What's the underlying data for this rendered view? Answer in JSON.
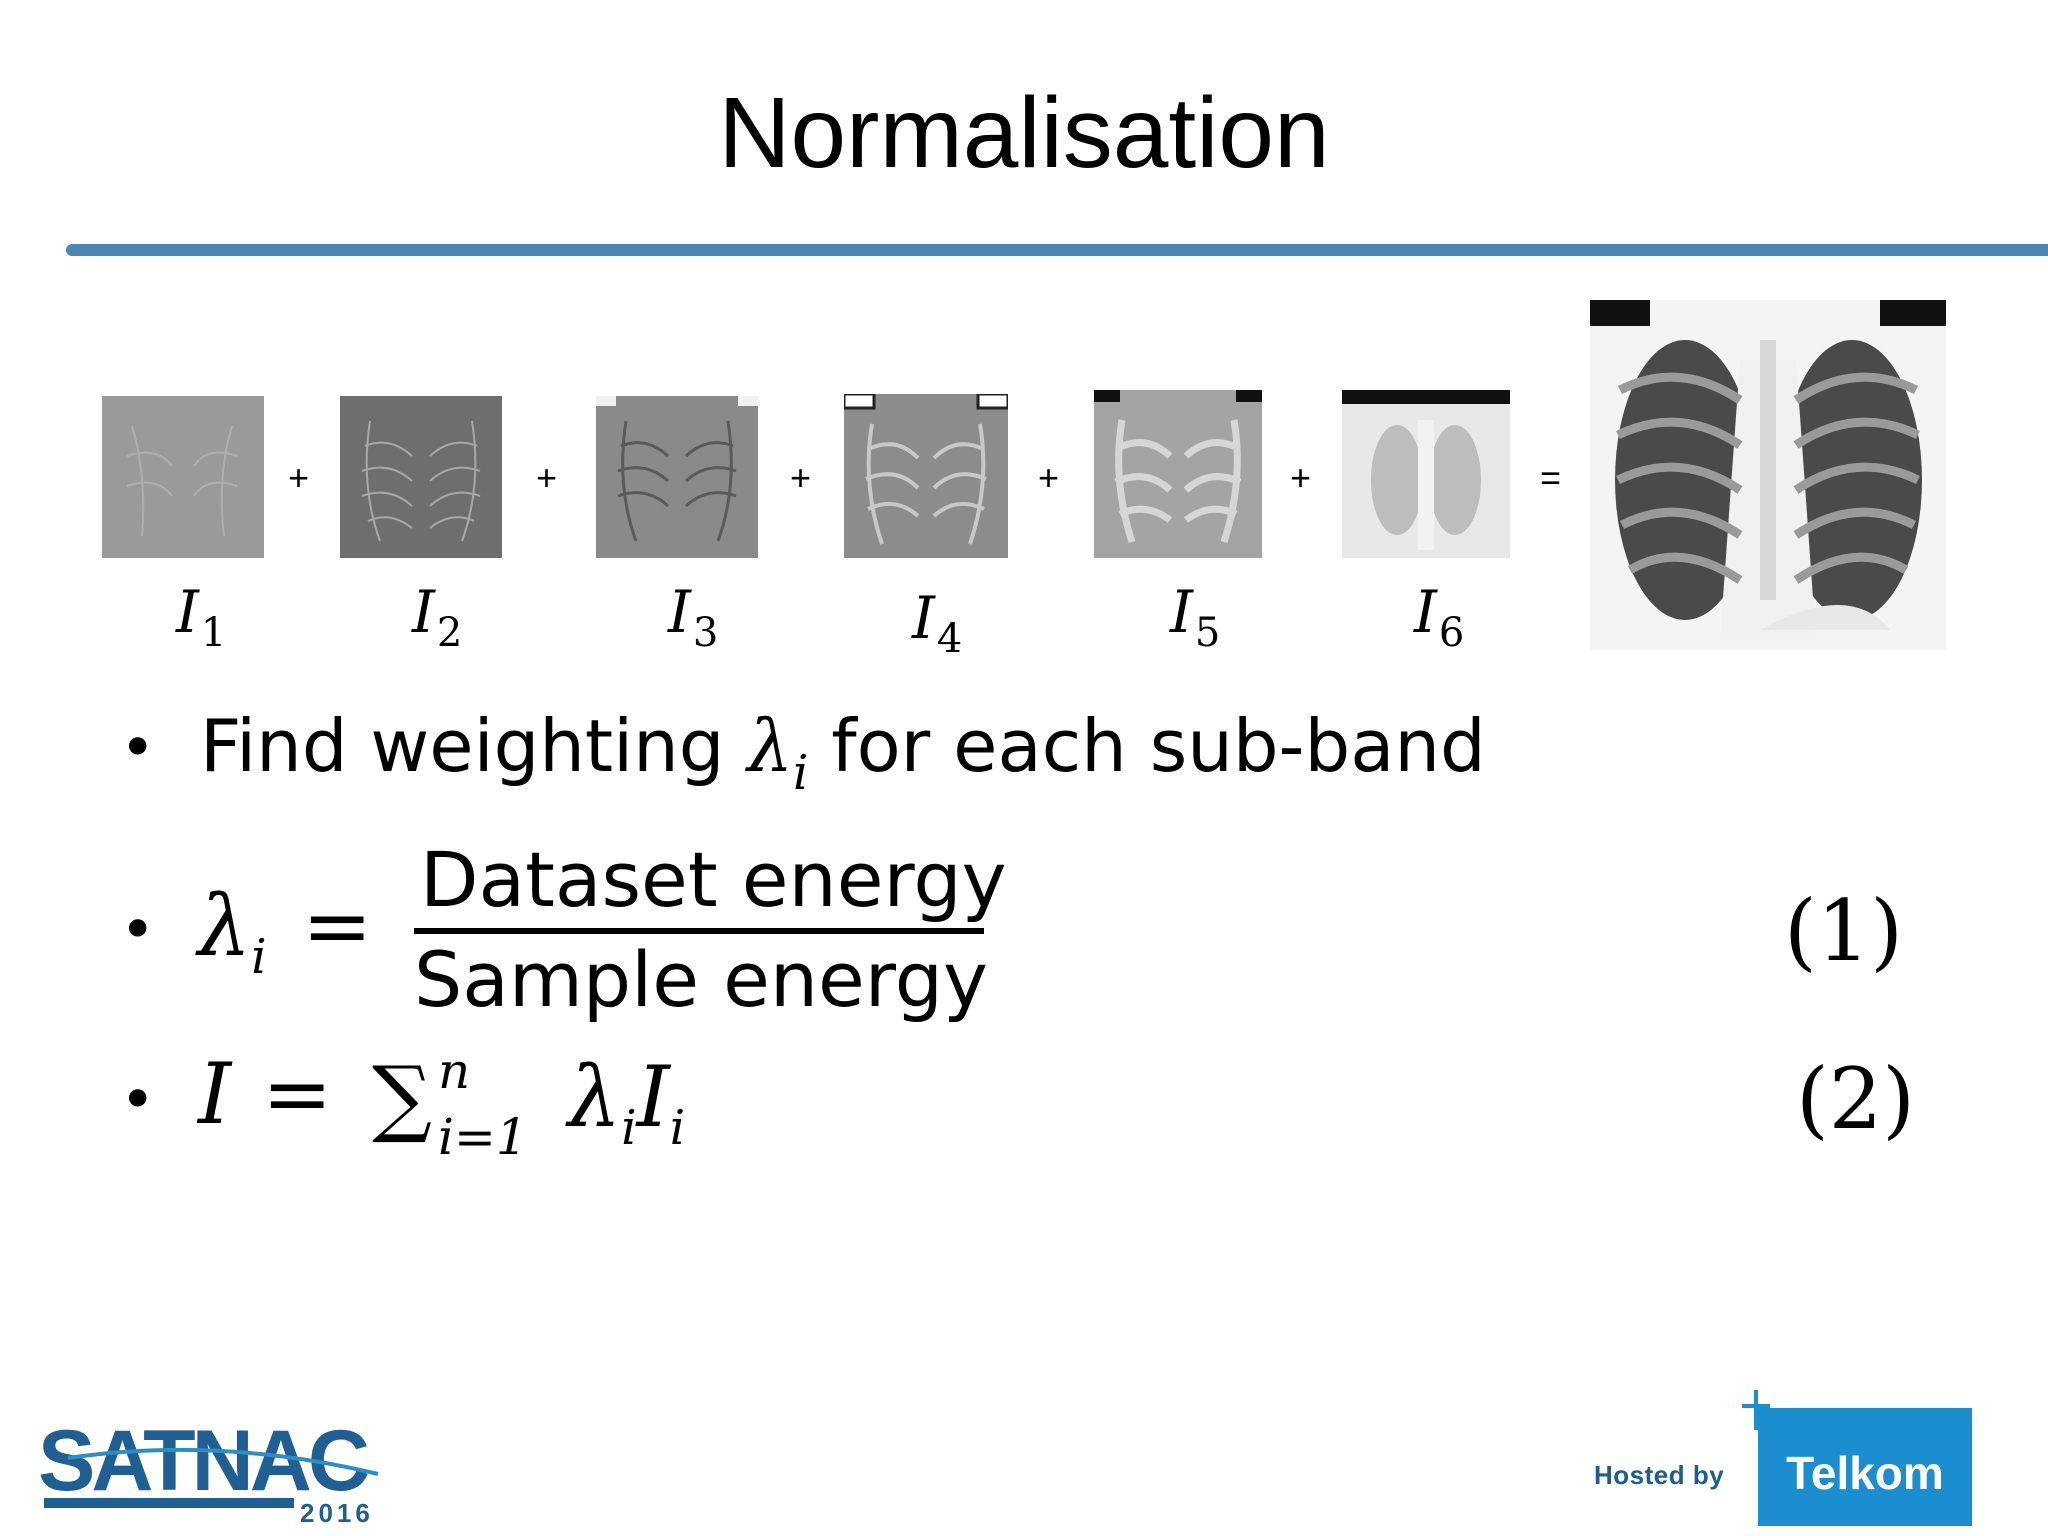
{
  "slide": {
    "title": "Normalisation",
    "accent_color": "#4a87b4"
  },
  "subbands": [
    {
      "label": "I",
      "index": "1",
      "icon": "xray-subband-1"
    },
    {
      "label": "I",
      "index": "2",
      "icon": "xray-subband-2"
    },
    {
      "label": "I",
      "index": "3",
      "icon": "xray-subband-3"
    },
    {
      "label": "I",
      "index": "4",
      "icon": "xray-subband-4"
    },
    {
      "label": "I",
      "index": "5",
      "icon": "xray-subband-5"
    },
    {
      "label": "I",
      "index": "6",
      "icon": "xray-subband-6"
    }
  ],
  "operators": {
    "plus": "+",
    "equals": "="
  },
  "result_icon": "chest-xray-image",
  "bullets": {
    "b1_pre": "Find weighting ",
    "b1_sym": "λ",
    "b1_sub": "i",
    "b1_post": " for each sub-band",
    "eq1_lhs_sym": "λ",
    "eq1_lhs_sub": "i",
    "eq1_eq": "=",
    "eq1_num": "Dataset energy",
    "eq1_den": "Sample energy",
    "eq1_number": "(1)",
    "eq2_lhs": "I",
    "eq2_eq": "=",
    "eq2_sigma": "∑",
    "eq2_sup": "n",
    "eq2_sub": "i=1",
    "eq2_term_sym": "λ",
    "eq2_term_sub": "i",
    "eq2_term_I": "I",
    "eq2_term_I_sub": "i",
    "eq2_number": "(2)",
    "bullet_char": "•"
  },
  "footer": {
    "left_logo": "SATNAC",
    "left_logo_year": "2016",
    "hosted_by": "Hosted by",
    "right_logo": "Telkom",
    "brand_blue": "#1b8ed0"
  }
}
